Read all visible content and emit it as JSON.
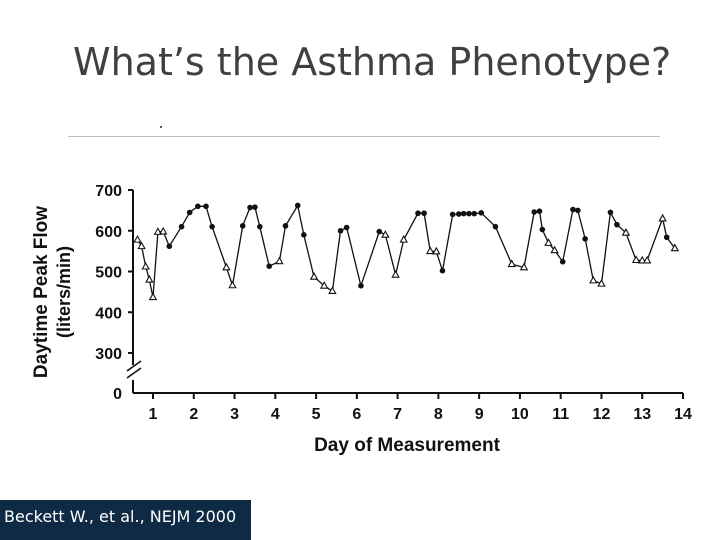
{
  "slide": {
    "title": "What’s the Asthma Phenotype?",
    "citation": "Beckett W., et al., NEJM 2000"
  },
  "colors": {
    "text": "#404040",
    "citation_bg": "#0f2a44",
    "citation_text": "#ffffff",
    "rule": "#bdbdbd",
    "plot": "#111111"
  },
  "chart_data": {
    "type": "line",
    "title": "",
    "xlabel": "Day of Measurement",
    "ylabel": "Daytime Peak Flow",
    "ylabel_units": "(liters/min)",
    "xlim": [
      0.6,
      14
    ],
    "ylim": [
      300,
      700
    ],
    "y_break_label": "0",
    "x_ticks": [
      1,
      2,
      3,
      4,
      5,
      6,
      7,
      8,
      9,
      10,
      11,
      12,
      13,
      14
    ],
    "y_ticks": [
      300,
      400,
      500,
      600,
      700
    ],
    "marker_legend": "filled circle = daytime reading (higher), open triangle = reading (lower)",
    "series": [
      {
        "points": [
          [
            0.62,
            578,
            "t"
          ],
          [
            0.72,
            562,
            "t"
          ],
          [
            0.82,
            512,
            "t"
          ],
          [
            0.91,
            480,
            "t"
          ],
          [
            1.0,
            437,
            "t"
          ],
          [
            1.12,
            597,
            "t"
          ],
          [
            1.25,
            598,
            "t"
          ],
          [
            1.4,
            562,
            "c"
          ],
          [
            1.7,
            610,
            "c"
          ],
          [
            1.9,
            645,
            "c"
          ],
          [
            2.1,
            660,
            "c"
          ],
          [
            2.3,
            660,
            "c"
          ],
          [
            2.45,
            610,
            "c"
          ],
          [
            2.8,
            510,
            "t"
          ],
          [
            2.95,
            466,
            "t"
          ],
          [
            3.2,
            612,
            "c"
          ],
          [
            3.38,
            657,
            "c"
          ],
          [
            3.5,
            658,
            "c"
          ],
          [
            3.62,
            610,
            "c"
          ],
          [
            3.85,
            513,
            "c"
          ],
          [
            4.1,
            525,
            "t"
          ],
          [
            4.25,
            612,
            "c"
          ],
          [
            4.55,
            662,
            "c"
          ],
          [
            4.7,
            590,
            "c"
          ],
          [
            4.95,
            487,
            "t"
          ],
          [
            5.2,
            465,
            "t"
          ],
          [
            5.4,
            452,
            "t"
          ],
          [
            5.6,
            600,
            "c"
          ],
          [
            5.75,
            608,
            "c"
          ],
          [
            6.1,
            465,
            "c"
          ],
          [
            6.55,
            598,
            "c"
          ],
          [
            6.7,
            590,
            "t"
          ],
          [
            6.95,
            492,
            "t"
          ],
          [
            7.15,
            578,
            "t"
          ],
          [
            7.5,
            643,
            "c"
          ],
          [
            7.65,
            643,
            "c"
          ],
          [
            7.8,
            550,
            "t"
          ],
          [
            7.95,
            549,
            "t"
          ],
          [
            8.1,
            502,
            "c"
          ],
          [
            8.35,
            640,
            "c"
          ],
          [
            8.5,
            641,
            "c"
          ],
          [
            8.62,
            642,
            "c"
          ],
          [
            8.75,
            642,
            "c"
          ],
          [
            8.88,
            642,
            "c"
          ],
          [
            9.05,
            644,
            "c"
          ],
          [
            9.4,
            610,
            "c"
          ],
          [
            9.8,
            518,
            "t"
          ],
          [
            10.1,
            510,
            "t"
          ],
          [
            10.35,
            646,
            "c"
          ],
          [
            10.48,
            648,
            "c"
          ],
          [
            10.55,
            603,
            "c"
          ],
          [
            10.7,
            570,
            "t"
          ],
          [
            10.85,
            552,
            "t"
          ],
          [
            11.05,
            524,
            "c"
          ],
          [
            11.3,
            652,
            "c"
          ],
          [
            11.42,
            650,
            "c"
          ],
          [
            11.6,
            580,
            "c"
          ],
          [
            11.8,
            478,
            "t"
          ],
          [
            12.0,
            470,
            "t"
          ],
          [
            12.22,
            645,
            "c"
          ],
          [
            12.38,
            615,
            "c"
          ],
          [
            12.6,
            595,
            "t"
          ],
          [
            12.85,
            528,
            "t"
          ],
          [
            13.0,
            527,
            "t"
          ],
          [
            13.12,
            527,
            "t"
          ],
          [
            13.5,
            630,
            "t"
          ],
          [
            13.6,
            584,
            "c"
          ],
          [
            13.8,
            557,
            "t"
          ]
        ]
      }
    ]
  }
}
